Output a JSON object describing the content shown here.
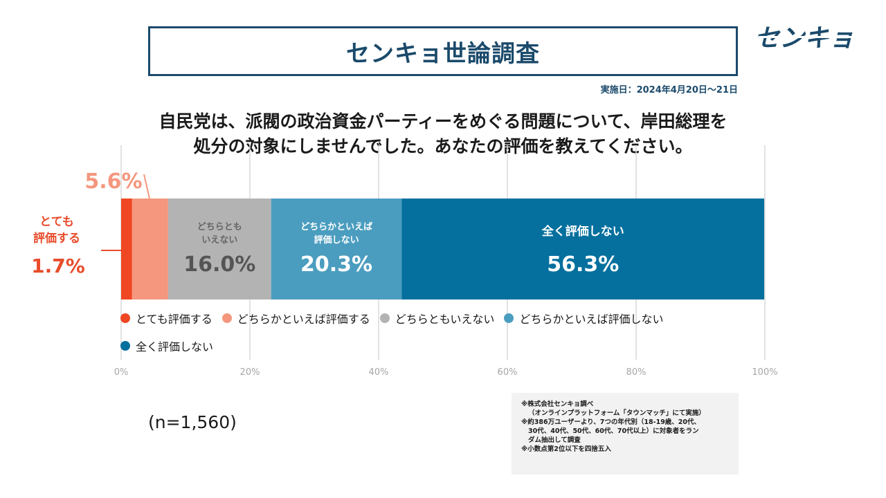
{
  "header": {
    "title": "センキョ世論調査",
    "logo": "センキョ",
    "date": "実施日：2024年4月20日～21日"
  },
  "question": {
    "line1": "自民党は、派閥の政治資金パーティーをめぐる問題について、岸田総理を",
    "line2": "処分の対象にしませんでした。あなたの評価を教えてください。"
  },
  "sample": "(n=1,560)",
  "notes": [
    "※株式会社センキョ調べ",
    "（オンラインプラットフォーム「タウンマッチ」にて実施）",
    "※約386万ユーザーより、7つの年代別（18-19歳、20代、",
    "30代、40代、50代、60代、70代以上）に対象者をラン",
    "ダム抽出して調査",
    "※小数点第2位以下を四捨五入"
  ],
  "colors": {
    "title": "#1b4a6b",
    "grid": "#d9d9d9",
    "axis_label": "#a6a6a6",
    "callout": "#e84c2b",
    "callout_light": "#f4977e"
  },
  "chart_data": {
    "type": "bar",
    "orientation": "horizontal-stacked",
    "xlim": [
      0,
      100
    ],
    "x_ticks": [
      "0%",
      "20%",
      "40%",
      "60%",
      "80%",
      "100%"
    ],
    "grid": true,
    "legend_position": "bottom",
    "series": [
      {
        "name": "とても評価する",
        "value": 1.7,
        "display_value": "1.7%",
        "inside_label": "",
        "callout_label": "とても\n評価する",
        "color": "#ef4623"
      },
      {
        "name": "どちらかといえば評価する",
        "value": 5.6,
        "display_value": "5.6%",
        "inside_label": "",
        "callout_label": "",
        "color": "#f4977e"
      },
      {
        "name": "どちらともいえない",
        "value": 16.0,
        "display_value": "16.0%",
        "inside_label": "どちらとも\nいえない",
        "callout_label": "",
        "color": "#b3b3b3"
      },
      {
        "name": "どちらかといえば評価しない",
        "value": 20.3,
        "display_value": "20.3%",
        "inside_label": "どちらかといえば\n評価しない",
        "callout_label": "",
        "color": "#4b9dbf"
      },
      {
        "name": "全く評価しない",
        "value": 56.3,
        "display_value": "56.3%",
        "inside_label": "全く評価しない",
        "callout_label": "",
        "color": "#05709e"
      }
    ]
  }
}
